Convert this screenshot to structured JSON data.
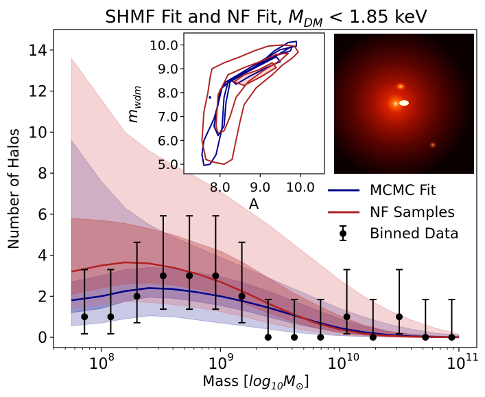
{
  "chart_data": [
    {
      "type": "line",
      "title_prefix": "SHMF Fit and NF Fit, ",
      "title_var": "M",
      "title_sub": "DM",
      "title_suffix": " < 1.85 keV",
      "xlabel_prefix": "Mass [",
      "xlabel_var": "log",
      "xlabel_sub1": "10",
      "xlabel_var2": "M",
      "xlabel_sub2": "⊙",
      "xlabel_suffix": "]",
      "ylabel": "Number of Halos",
      "xscale": "log",
      "xlim_log10": [
        7.6,
        11.15
      ],
      "ylim": [
        -0.5,
        15
      ],
      "xticks_log10": [
        8,
        9,
        10,
        11
      ],
      "xtick_labels": [
        "10",
        "10",
        "10",
        "10"
      ],
      "xtick_exponents": [
        "8",
        "9",
        "10",
        "11"
      ],
      "yticks": [
        0,
        2,
        4,
        6,
        8,
        10,
        12,
        14
      ],
      "ytick_labels": [
        "0",
        "2",
        "4",
        "6",
        "8",
        "10",
        "12",
        "14"
      ],
      "legend": {
        "position": "right-middle",
        "entries": [
          {
            "label": "MCMC Fit",
            "kind": "line",
            "color": "#00008b"
          },
          {
            "label": "NF Samples",
            "kind": "line",
            "color": "#b22222"
          },
          {
            "label": "Binned Data",
            "kind": "errorbar",
            "color": "#000000"
          }
        ]
      },
      "series": [
        {
          "name": "MCMC Fit",
          "color": "#00008b",
          "x_log10": [
            7.75,
            8.0,
            8.2,
            8.4,
            8.6,
            8.8,
            9.0,
            9.2,
            9.4,
            9.6,
            9.8,
            10.0,
            10.2,
            10.4,
            10.6,
            10.8,
            11.0
          ],
          "y": [
            1.8,
            2.0,
            2.25,
            2.4,
            2.35,
            2.2,
            2.0,
            1.75,
            1.45,
            1.1,
            0.75,
            0.45,
            0.25,
            0.12,
            0.05,
            0.02,
            0.01
          ],
          "band_inner": {
            "lower": [
              1.2,
              1.4,
              1.75,
              1.95,
              1.9,
              1.75,
              1.55,
              1.3,
              1.0,
              0.7,
              0.45,
              0.25,
              0.12,
              0.05,
              0.02,
              0.01,
              0.0
            ],
            "upper": [
              2.7,
              3.0,
              3.3,
              3.4,
              3.35,
              3.15,
              2.95,
              2.65,
              2.25,
              1.8,
              1.35,
              0.9,
              0.55,
              0.3,
              0.15,
              0.07,
              0.03
            ]
          },
          "band_outer": {
            "lower": [
              0.55,
              0.7,
              0.9,
              1.05,
              1.0,
              0.85,
              0.7,
              0.55,
              0.4,
              0.25,
              0.15,
              0.08,
              0.03,
              0.01,
              0.0,
              0.0,
              0.0
            ],
            "upper": [
              9.6,
              7.6,
              6.3,
              5.5,
              4.9,
              4.4,
              3.9,
              3.4,
              2.9,
              2.4,
              1.9,
              1.4,
              1.0,
              0.65,
              0.4,
              0.2,
              0.1
            ]
          }
        },
        {
          "name": "NF Samples",
          "color": "#b22222",
          "x_log10": [
            7.75,
            8.0,
            8.2,
            8.4,
            8.6,
            8.8,
            9.0,
            9.2,
            9.4,
            9.6,
            9.8,
            10.0,
            10.2,
            10.4,
            10.6,
            10.8,
            11.0
          ],
          "y": [
            3.2,
            3.5,
            3.65,
            3.6,
            3.4,
            3.1,
            2.7,
            2.2,
            1.65,
            1.15,
            0.7,
            0.38,
            0.18,
            0.08,
            0.03,
            0.01,
            0.0
          ],
          "band_inner": {
            "lower": [
              2.1,
              2.4,
              2.6,
              2.65,
              2.55,
              2.35,
              2.05,
              1.65,
              1.2,
              0.8,
              0.45,
              0.22,
              0.1,
              0.04,
              0.01,
              0.0,
              0.0
            ],
            "upper": [
              5.8,
              5.7,
              5.55,
              5.3,
              5.0,
              4.6,
              4.2,
              3.6,
              2.9,
              2.2,
              1.6,
              1.05,
              0.6,
              0.3,
              0.14,
              0.06,
              0.02
            ]
          },
          "band_outer": {
            "lower": [
              1.4,
              1.6,
              1.75,
              1.7,
              1.6,
              1.45,
              1.25,
              1.0,
              0.7,
              0.45,
              0.25,
              0.12,
              0.05,
              0.02,
              0.0,
              0.0,
              0.0
            ],
            "upper": [
              13.6,
              11.6,
              10.0,
              9.1,
              8.4,
              7.8,
              7.1,
              6.3,
              5.5,
              4.6,
              3.7,
              2.8,
              2.0,
              1.35,
              0.85,
              0.45,
              0.15
            ]
          }
        },
        {
          "name": "Binned Data",
          "type": "errorbar",
          "color": "#000000",
          "x_log10": [
            7.86,
            8.08,
            8.3,
            8.52,
            8.74,
            8.96,
            9.18,
            9.4,
            9.62,
            9.84,
            10.06,
            10.28,
            10.5,
            10.72,
            10.94
          ],
          "y": [
            1,
            1,
            2,
            3,
            3,
            3,
            2,
            0,
            0,
            0,
            1,
            0,
            1,
            0,
            0
          ],
          "err_low": [
            0.83,
            0.83,
            1.29,
            1.63,
            1.63,
            1.63,
            1.29,
            0,
            0,
            0,
            0.83,
            0,
            0.83,
            0,
            0
          ],
          "err_high": [
            2.3,
            2.3,
            2.63,
            2.92,
            2.92,
            2.92,
            2.63,
            1.84,
            1.84,
            1.84,
            2.3,
            1.84,
            2.3,
            1.84,
            1.84
          ]
        }
      ]
    },
    {
      "type": "contour",
      "xlabel": "A",
      "ylabel_var": "m",
      "ylabel_sub": "wdm",
      "xlim": [
        7.1,
        10.6
      ],
      "ylim": [
        4.6,
        10.5
      ],
      "xticks": [
        8.0,
        9.0,
        10.0
      ],
      "xtick_labels": [
        "8.0",
        "9.0",
        "10.0"
      ],
      "yticks": [
        5.0,
        6.0,
        7.0,
        8.0,
        9.0,
        10.0
      ],
      "ytick_labels": [
        "5.0",
        "6.0",
        "7.0",
        "8.0",
        "9.0",
        "10.0"
      ],
      "series": [
        {
          "name": "MCMC Fit",
          "color": "#00008b",
          "levels": [
            {
              "x": [
                7.6,
                7.55,
                7.6,
                7.85,
                7.95,
                8.0,
                8.15,
                8.4,
                8.75,
                9.05,
                9.35,
                9.7,
                9.9,
                9.9,
                9.5,
                9.1,
                8.75,
                8.45,
                8.2,
                8.1,
                8.05,
                7.9,
                7.75,
                7.6
              ],
              "y": [
                4.95,
                5.4,
                6.0,
                6.9,
                7.5,
                8.1,
                8.45,
                8.7,
                8.95,
                9.3,
                9.75,
                10.1,
                10.15,
                9.95,
                9.8,
                9.4,
                9.05,
                8.75,
                8.45,
                7.8,
                6.5,
                5.4,
                5.0,
                4.95
              ]
            },
            {
              "x": [
                7.85,
                7.95,
                8.05,
                8.3,
                8.7,
                9.1,
                9.5,
                9.8,
                9.75,
                9.3,
                8.9,
                8.5,
                8.25,
                8.15,
                8.1,
                7.95,
                7.85
              ],
              "y": [
                6.6,
                7.5,
                8.2,
                8.55,
                8.9,
                9.25,
                9.65,
                9.95,
                9.75,
                9.5,
                9.1,
                8.75,
                8.45,
                7.6,
                6.6,
                6.2,
                6.6
              ]
            },
            {
              "x": [
                8.3,
                8.6,
                9.0,
                9.4,
                9.5,
                9.1,
                8.7,
                8.4,
                8.3
              ],
              "y": [
                8.5,
                8.8,
                9.15,
                9.5,
                9.3,
                9.0,
                8.65,
                8.35,
                8.5
              ]
            }
          ]
        },
        {
          "name": "NF Samples",
          "color": "#b22222",
          "levels": [
            {
              "x": [
                7.65,
                7.55,
                7.6,
                7.7,
                7.75,
                7.8,
                8.1,
                8.5,
                8.85,
                9.2,
                9.55,
                9.85,
                9.95,
                9.8,
                9.55,
                9.3,
                8.9,
                8.6,
                8.5,
                8.4,
                8.3,
                8.1,
                7.95,
                7.8,
                7.65
              ],
              "y": [
                5.2,
                6.0,
                7.2,
                8.0,
                8.6,
                9.0,
                9.25,
                9.5,
                9.75,
                9.95,
                10.0,
                9.95,
                9.7,
                9.45,
                9.15,
                8.75,
                8.2,
                7.5,
                6.8,
                6.0,
                5.2,
                5.0,
                5.05,
                5.1,
                5.2
              ]
            },
            {
              "x": [
                7.9,
                7.95,
                8.2,
                8.6,
                9.0,
                9.4,
                9.7,
                9.5,
                9.1,
                8.7,
                8.4,
                8.25,
                8.1,
                7.95,
                7.9
              ],
              "y": [
                6.6,
                7.9,
                8.75,
                9.05,
                9.3,
                9.6,
                9.65,
                9.35,
                8.95,
                8.45,
                7.8,
                7.0,
                6.4,
                6.3,
                6.6
              ]
            },
            {
              "x": [
                8.35,
                8.6,
                8.95,
                9.3,
                9.4,
                9.0,
                8.6,
                8.35
              ],
              "y": [
                8.45,
                8.75,
                8.95,
                9.25,
                9.05,
                8.65,
                8.3,
                8.45
              ]
            }
          ]
        }
      ]
    }
  ],
  "inset_image": {
    "description_color_low": "#000000",
    "color_high": "#ff3300"
  }
}
